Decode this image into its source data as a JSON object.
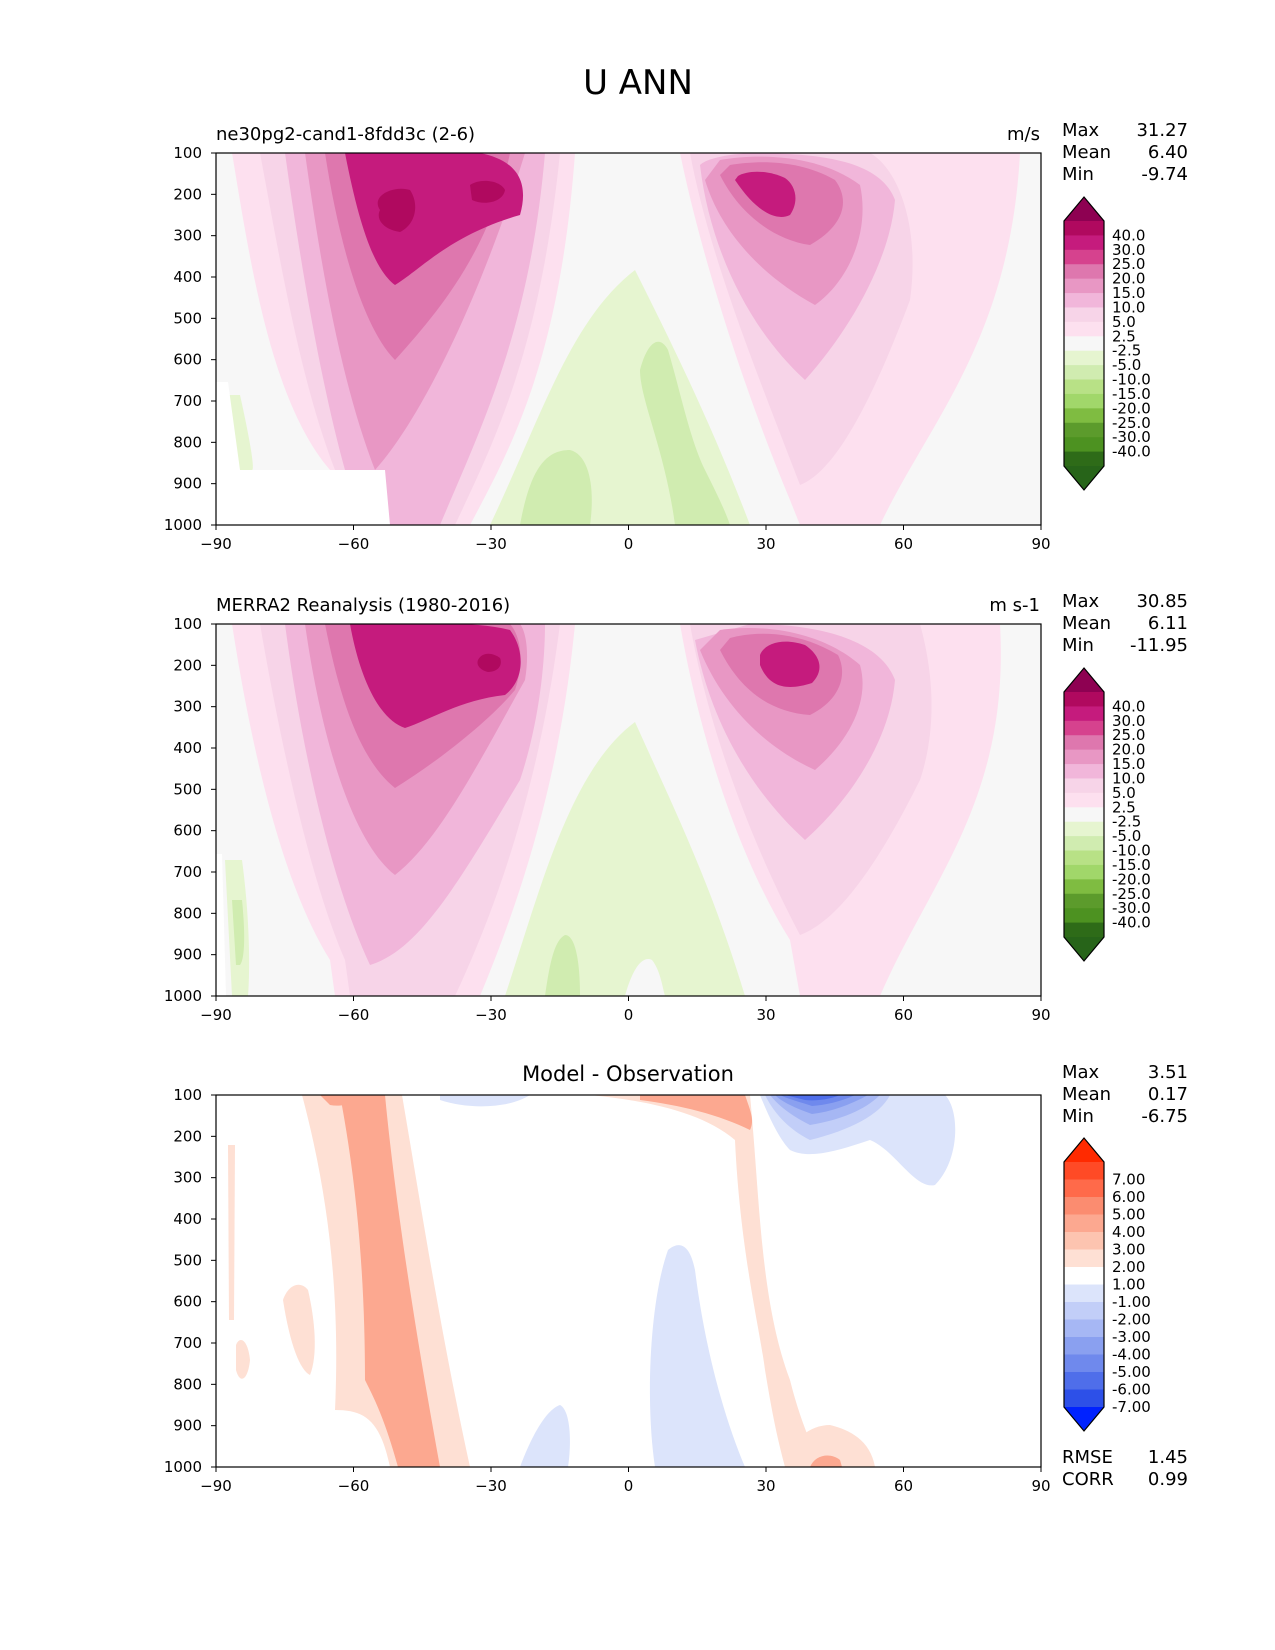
{
  "figure": {
    "title": "U ANN"
  },
  "chart_data": [
    {
      "type": "heatmap",
      "name": "model",
      "title": "ne30pg2-cand1-8fdd3c (2-6)",
      "units": "m/s",
      "x_ticks": [
        "−90",
        "−60",
        "−30",
        "0",
        "30",
        "60",
        "90"
      ],
      "y_ticks": [
        "100",
        "200",
        "300",
        "400",
        "500",
        "600",
        "700",
        "800",
        "900",
        "1000"
      ],
      "xlim": [
        -90,
        90
      ],
      "ylim": [
        100,
        1000
      ],
      "stats": [
        {
          "label": "Max",
          "value": "31.27"
        },
        {
          "label": "Mean",
          "value": "6.40"
        },
        {
          "label": "Min",
          "value": "-9.74"
        }
      ],
      "colorbar": {
        "labels": [
          "40.0",
          "30.0",
          "25.0",
          "20.0",
          "15.0",
          "10.0",
          "5.0",
          "2.5",
          "-2.5",
          "-5.0",
          "-10.0",
          "-15.0",
          "-20.0",
          "-25.0",
          "-30.0",
          "-40.0"
        ],
        "colors": [
          "#8e0152",
          "#b0095f",
          "#c51b7d",
          "#d6428e",
          "#de77ae",
          "#e897c4",
          "#f1b6da",
          "#f7d4e8",
          "#fde0ef",
          "#f7f7f7",
          "#e6f5d0",
          "#d0ecb0",
          "#b8e186",
          "#a1d76a",
          "#7fbc41",
          "#5c9b2c",
          "#4d9221",
          "#2e6b18",
          "#276419"
        ]
      }
    },
    {
      "type": "heatmap",
      "name": "obs",
      "title": "MERRA2 Reanalysis (1980-2016)",
      "units": "m s-1",
      "x_ticks": [
        "−90",
        "−60",
        "−30",
        "0",
        "30",
        "60",
        "90"
      ],
      "y_ticks": [
        "100",
        "200",
        "300",
        "400",
        "500",
        "600",
        "700",
        "800",
        "900",
        "1000"
      ],
      "xlim": [
        -90,
        90
      ],
      "ylim": [
        100,
        1000
      ],
      "stats": [
        {
          "label": "Max",
          "value": "30.85"
        },
        {
          "label": "Mean",
          "value": "6.11"
        },
        {
          "label": "Min",
          "value": "-11.95"
        }
      ],
      "colorbar": {
        "labels": [
          "40.0",
          "30.0",
          "25.0",
          "20.0",
          "15.0",
          "10.0",
          "5.0",
          "2.5",
          "-2.5",
          "-5.0",
          "-10.0",
          "-15.0",
          "-20.0",
          "-25.0",
          "-30.0",
          "-40.0"
        ],
        "colors": [
          "#8e0152",
          "#b0095f",
          "#c51b7d",
          "#d6428e",
          "#de77ae",
          "#e897c4",
          "#f1b6da",
          "#f7d4e8",
          "#fde0ef",
          "#f7f7f7",
          "#e6f5d0",
          "#d0ecb0",
          "#b8e186",
          "#a1d76a",
          "#7fbc41",
          "#5c9b2c",
          "#4d9221",
          "#2e6b18",
          "#276419"
        ]
      }
    },
    {
      "type": "heatmap",
      "name": "diff",
      "title": "Model - Observation",
      "units": "",
      "x_ticks": [
        "−90",
        "−60",
        "−30",
        "0",
        "30",
        "60",
        "90"
      ],
      "y_ticks": [
        "100",
        "200",
        "300",
        "400",
        "500",
        "600",
        "700",
        "800",
        "900",
        "1000"
      ],
      "xlim": [
        -90,
        90
      ],
      "ylim": [
        100,
        1000
      ],
      "stats": [
        {
          "label": "Max",
          "value": "3.51"
        },
        {
          "label": "Mean",
          "value": "0.17"
        },
        {
          "label": "Min",
          "value": "-6.75"
        }
      ],
      "metrics": [
        {
          "label": "RMSE",
          "value": "1.45"
        },
        {
          "label": "CORR",
          "value": "0.99"
        }
      ],
      "colorbar": {
        "labels": [
          "7.00",
          "6.00",
          "5.00",
          "4.00",
          "3.00",
          "2.00",
          "1.00",
          "-1.00",
          "-2.00",
          "-3.00",
          "-4.00",
          "-5.00",
          "-6.00",
          "-7.00"
        ],
        "colors": [
          "#ff2a00",
          "#ff4a26",
          "#ff6a4a",
          "#fb8c70",
          "#fca890",
          "#fdc4b0",
          "#fee0d4",
          "#ffffff",
          "#dce4fb",
          "#c2cef8",
          "#a6b7f4",
          "#8aa0f0",
          "#6f89ed",
          "#4f6eea",
          "#2d50e8",
          "#0022ff"
        ]
      }
    }
  ]
}
